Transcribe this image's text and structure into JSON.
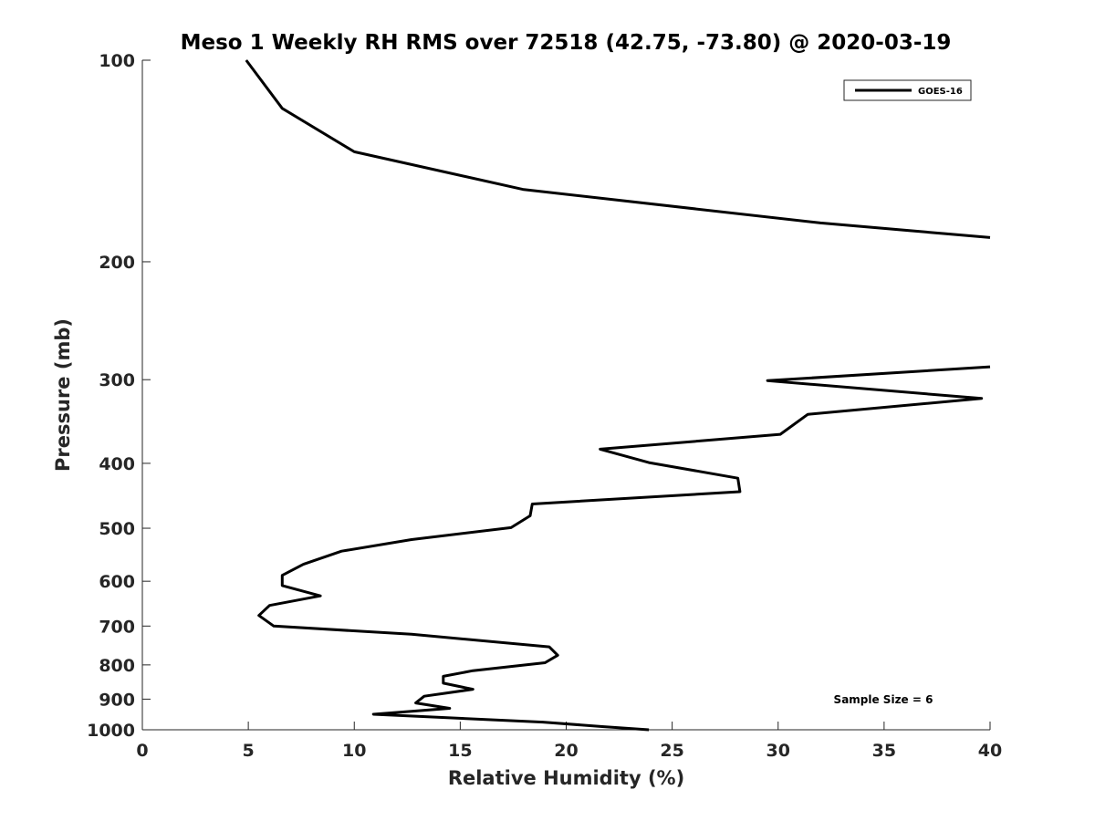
{
  "chart_data": {
    "type": "line",
    "title": "Meso 1 Weekly RH RMS over 72518 (42.75, -73.80) @ 2020-03-19",
    "xlabel": "Relative Humidity (%)",
    "ylabel": "Pressure (mb)",
    "xlim": [
      0,
      40
    ],
    "ylim": [
      100,
      1000
    ],
    "y_scale": "log",
    "y_reversed": true,
    "x_ticks": [
      "0",
      "5",
      "10",
      "15",
      "20",
      "25",
      "30",
      "35",
      "40"
    ],
    "y_ticks": [
      "100",
      "200",
      "300",
      "400",
      "500",
      "600",
      "700",
      "800",
      "900",
      "1000"
    ],
    "grid": false,
    "legend_position": "top-right",
    "annotation": "Sample Size = 6",
    "series": [
      {
        "name": "GOES-16",
        "color": "#000000",
        "x": [
          4.9,
          6.6,
          10.0,
          18.0,
          32.0,
          40.0
        ],
        "y": [
          100,
          118,
          137,
          156,
          175,
          184
        ]
      },
      {
        "name": "GOES-16",
        "color": "#000000",
        "x": [
          40.0,
          29.5,
          39.6,
          31.4,
          30.1,
          21.6,
          23.9,
          28.1,
          28.2,
          18.4,
          18.3,
          17.4,
          12.7,
          9.4,
          7.6,
          6.6,
          6.6,
          8.4,
          6.0,
          5.5,
          6.2,
          12.7,
          19.2,
          19.6,
          19.0,
          15.6,
          14.2,
          14.2,
          15.6,
          13.3,
          12.9,
          14.5,
          10.9,
          18.9,
          21.7,
          23.9
        ],
        "y": [
          287,
          301,
          320,
          338,
          362,
          381,
          399,
          421,
          441,
          460,
          479,
          499,
          520,
          541,
          566,
          588,
          609,
          631,
          652,
          675,
          700,
          720,
          752,
          774,
          794,
          816,
          832,
          852,
          870,
          891,
          912,
          929,
          948,
          974,
          989,
          1000
        ]
      }
    ]
  }
}
